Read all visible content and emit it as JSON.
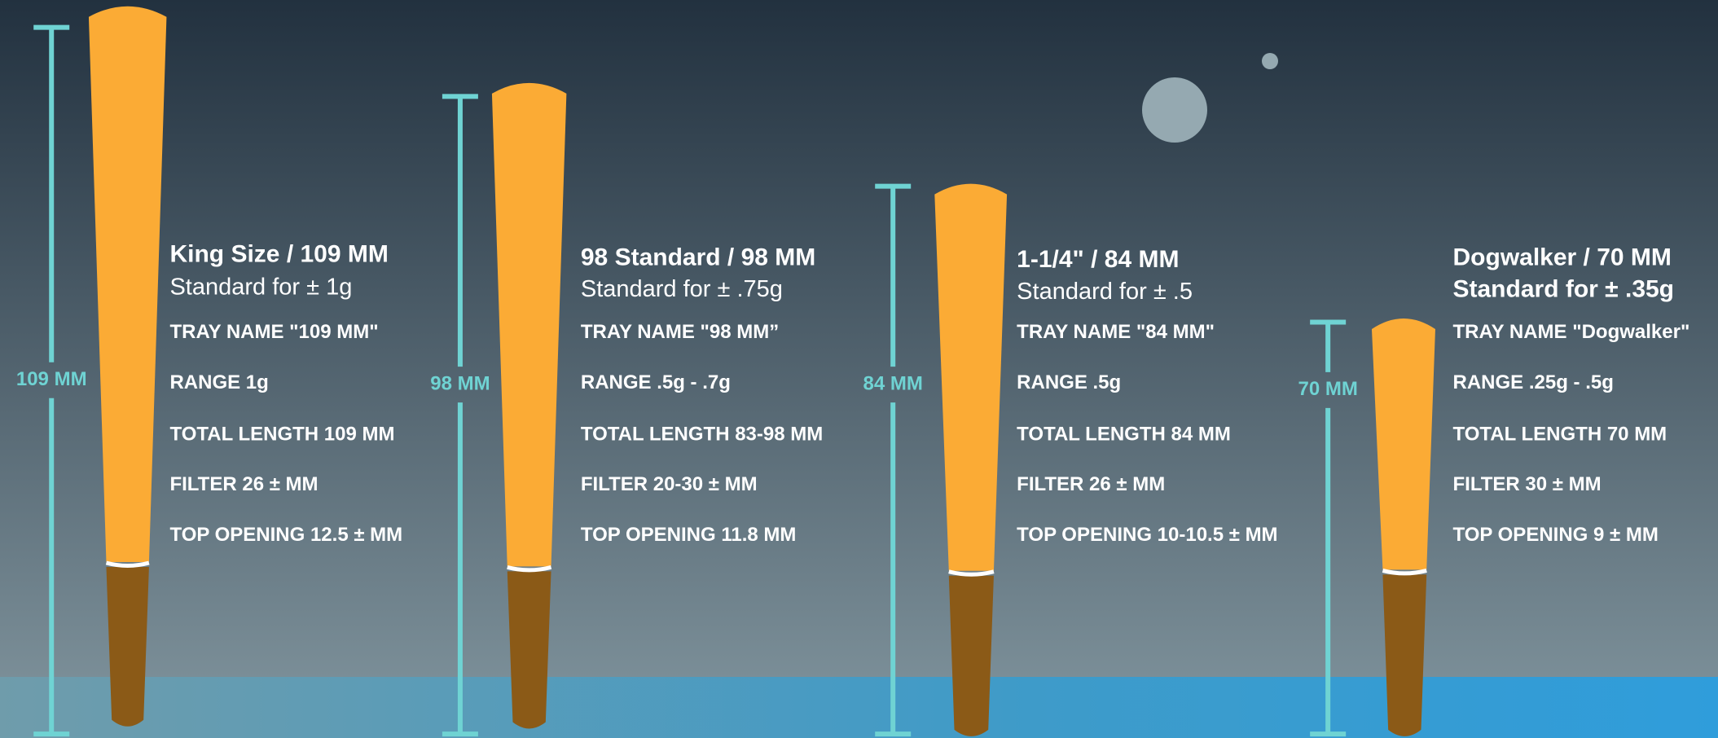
{
  "items": [
    {
      "measure": "109 MM",
      "title": "King Size / 109 MM",
      "subtitle": "Standard for ± 1g",
      "specs": [
        "TRAY NAME \"109 MM\"",
        "RANGE 1g",
        "TOTAL LENGTH 109 MM",
        "FILTER 26 ± MM",
        "TOP OPENING 12.5 ± MM"
      ]
    },
    {
      "measure": "98 MM",
      "title": "98 Standard / 98 MM",
      "subtitle": "Standard for ± .75g",
      "specs": [
        "TRAY NAME \"98 MM”",
        "RANGE .5g - .7g",
        "TOTAL LENGTH 83-98 MM",
        "FILTER 20-30 ± MM",
        "TOP OPENING 11.8 MM"
      ]
    },
    {
      "measure": "84 MM",
      "title": "1-1/4\" / 84 MM",
      "subtitle": "Standard for ± .5",
      "specs": [
        "TRAY NAME \"84 MM\"",
        "RANGE .5g",
        "TOTAL LENGTH 84 MM",
        "FILTER 26 ± MM",
        "TOP OPENING 10-10.5 ± MM"
      ]
    },
    {
      "measure": "70 MM",
      "title": "Dogwalker / 70 MM",
      "subtitle": "Standard for ± .35g",
      "specs": [
        "TRAY NAME \"Dogwalker\"",
        "RANGE .25g - .5g",
        "TOTAL LENGTH 70 MM",
        "FILTER 30 ± MM",
        "TOP OPENING 9 ± MM"
      ]
    }
  ]
}
